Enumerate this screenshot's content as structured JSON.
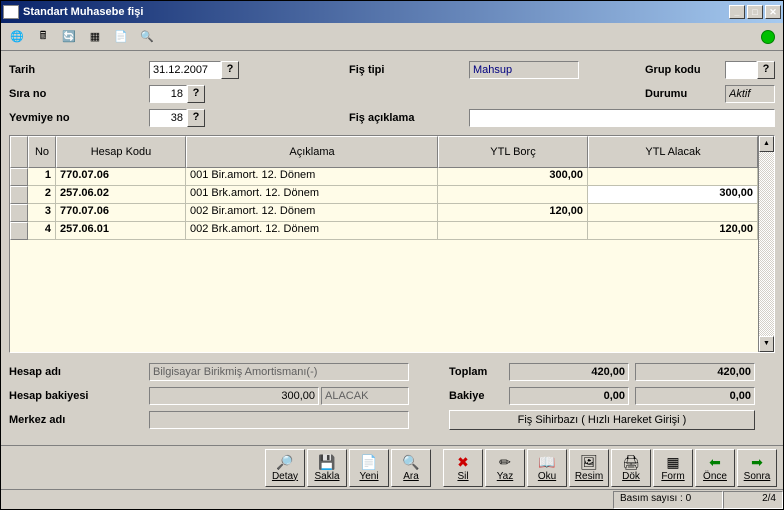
{
  "window": {
    "title": "Standart Muhasebe fişi"
  },
  "header": {
    "tarih_label": "Tarih",
    "tarih": "31.12.2007",
    "sira_label": "Sıra no",
    "sira": "18",
    "yevmiye_label": "Yevmiye no",
    "yevmiye": "38",
    "fis_tipi_label": "Fiş tipi",
    "fis_tipi": "Mahsup",
    "fis_aciklama_label": "Fiş açıklama",
    "fis_aciklama": "",
    "grup_kodu_label": "Grup kodu",
    "grup_kodu": "",
    "durumu_label": "Durumu",
    "durumu": "Aktif"
  },
  "grid": {
    "columns": {
      "sel": "",
      "no": "No",
      "hesap": "Hesap Kodu",
      "aciklama": "Açıklama",
      "borc": "YTL Borç",
      "alacak": "YTL Alacak"
    },
    "rows": [
      {
        "no": "1",
        "hesap": "770.07.06",
        "aciklama": "001 Bir.amort. 12. Dönem",
        "borc": "300,00",
        "alacak": ""
      },
      {
        "no": "2",
        "hesap": "257.06.02",
        "aciklama": "001 Brk.amort. 12. Dönem",
        "borc": "",
        "alacak": "300,00"
      },
      {
        "no": "3",
        "hesap": "770.07.06",
        "aciklama": "002 Bir.amort. 12. Dönem",
        "borc": "120,00",
        "alacak": ""
      },
      {
        "no": "4",
        "hesap": "257.06.01",
        "aciklama": "002 Brk.amort. 12. Dönem",
        "borc": "",
        "alacak": "120,00"
      }
    ]
  },
  "footer": {
    "hesap_adi_label": "Hesap adı",
    "hesap_adi": "Bilgisayar Birikmiş Amortismanı(-)",
    "hesap_bakiyesi_label": "Hesap bakiyesi",
    "hesap_bakiyesi": "300,00",
    "hesap_bakiyesi_side": "ALACAK",
    "merkez_adi_label": "Merkez adı",
    "merkez_adi": "",
    "toplam_label": "Toplam",
    "toplam_borc": "420,00",
    "toplam_alacak": "420,00",
    "bakiye_label": "Bakiye",
    "bakiye_borc": "0,00",
    "bakiye_alacak": "0,00",
    "wizard_btn": "Fiş Sihirbazı ( Hızlı Hareket Girişi )"
  },
  "actions": {
    "detay": "Detay",
    "sakla": "Sakla",
    "yeni": "Yeni",
    "ara": "Ara",
    "sil": "Sil",
    "yaz": "Yaz",
    "oku": "Oku",
    "resim": "Resim",
    "dok": "Dök",
    "form": "Form",
    "once": "Önce",
    "sonra": "Sonra"
  },
  "status": {
    "basim": "Basım sayısı : 0",
    "page": "2/4"
  },
  "colors": {
    "titlebar_start": "#0a246a",
    "titlebar_end": "#a6caf0",
    "bg": "#d4d0c8",
    "grid_bg": "#fffce8"
  }
}
